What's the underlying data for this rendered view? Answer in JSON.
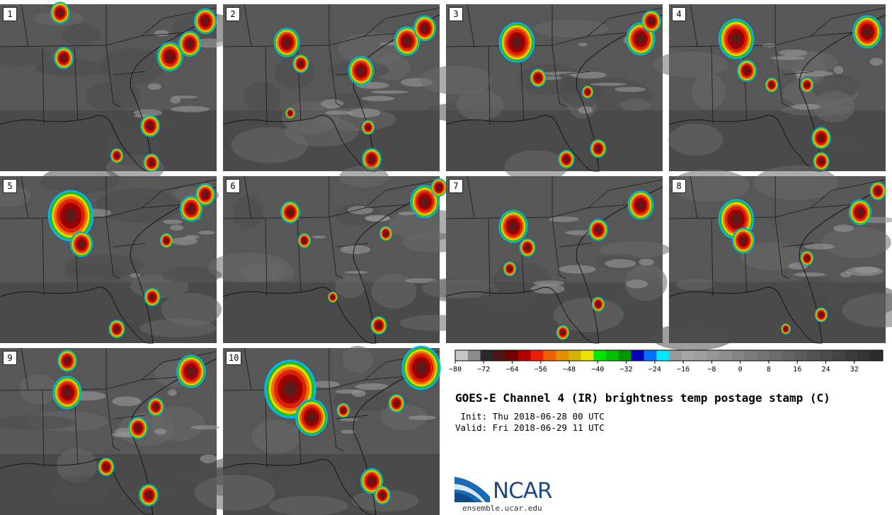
{
  "panels": [
    "1",
    "2",
    "3",
    "4",
    "5",
    "6",
    "7",
    "8",
    "9",
    "10"
  ],
  "colorbar": {
    "colors": [
      "#c8c8c8",
      "#8c8c8c",
      "#2a2a2a",
      "#4e1414",
      "#6e0000",
      "#b00000",
      "#e82000",
      "#f06000",
      "#e09000",
      "#d4b400",
      "#e6e600",
      "#00e600",
      "#00c000",
      "#009600",
      "#0000b4",
      "#0070ff",
      "#00e6ff",
      "#9a9a9a",
      "#a6a6a6",
      "#9e9e9e",
      "#969696",
      "#8e8e8e",
      "#848484",
      "#7c7c7c",
      "#747474",
      "#6c6c6c",
      "#646464",
      "#5c5c5c",
      "#545454",
      "#4c4c4c",
      "#444444",
      "#3c3c3c",
      "#343434",
      "#2c2c2c"
    ],
    "tick_labels": [
      "−80",
      "−72",
      "−64",
      "−56",
      "−48",
      "−40",
      "−32",
      "−24",
      "−16",
      "−8",
      "0",
      "8",
      "16",
      "24",
      "32"
    ],
    "range": [
      -80,
      40
    ]
  },
  "title": "GOES-E Channel 4 (IR) brightness temp postage stamp (C)",
  "init": " Init: Thu 2018-06-28 00 UTC",
  "valid": "Valid: Fri 2018-06-29 11 UTC",
  "logo": {
    "name": "NCAR",
    "url": "ensemble.ucar.edu"
  }
}
